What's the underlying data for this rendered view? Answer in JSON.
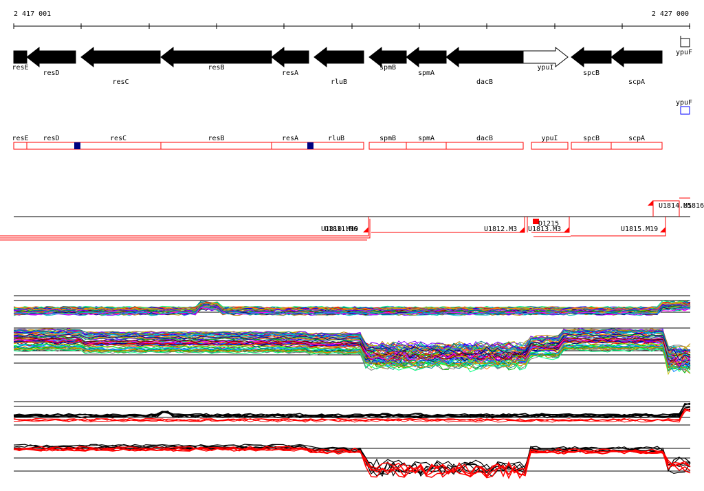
{
  "coordinates": {
    "start": "2 417 001",
    "end": "2 427 000"
  },
  "genes": [
    {
      "label": "resE",
      "strand": "minus",
      "label_row": 1
    },
    {
      "label": "resD",
      "strand": "minus",
      "label_row": 2
    },
    {
      "label": "resC",
      "strand": "minus",
      "label_row": 3
    },
    {
      "label": "resB",
      "strand": "minus",
      "label_row": 1
    },
    {
      "label": "resA",
      "strand": "minus",
      "label_row": 2
    },
    {
      "label": "rluB",
      "strand": "minus",
      "label_row": 3
    },
    {
      "label": "spmB",
      "strand": "minus",
      "label_row": 1
    },
    {
      "label": "spmA",
      "strand": "minus",
      "label_row": 2
    },
    {
      "label": "dacB",
      "strand": "minus",
      "label_row": 3
    },
    {
      "label": "ypuI",
      "strand": "plus",
      "label_row": 1
    },
    {
      "label": "spcB",
      "strand": "minus",
      "label_row": 2
    },
    {
      "label": "scpA",
      "strand": "minus",
      "label_row": 3
    },
    {
      "label": "ypuF",
      "strand": "plus",
      "label_row": 2
    }
  ],
  "orf_boxes": [
    {
      "label": "resE"
    },
    {
      "label": "resD"
    },
    {
      "label": "resC"
    },
    {
      "label": "resB"
    },
    {
      "label": "resA"
    },
    {
      "label": "rluB"
    },
    {
      "label": "spmB"
    },
    {
      "label": "spmA"
    },
    {
      "label": "dacB"
    },
    {
      "label": "ypuI"
    },
    {
      "label": "spcB"
    },
    {
      "label": "scpA"
    }
  ],
  "ypuF_box_label": "ypuF",
  "transcript_units": [
    {
      "label": "U1810.M19"
    },
    {
      "label": "U1811.M6"
    },
    {
      "label": "U1812.M3"
    },
    {
      "label": "U1813.M3"
    },
    {
      "label": "D1215"
    },
    {
      "label": "U1814.M5"
    },
    {
      "label": "U1815.M19"
    },
    {
      "label": "U1816"
    }
  ],
  "colors": {
    "gene_fill": "#000000",
    "gene_plus_fill": "#ffffff",
    "box_stroke": "#ff0000",
    "feature_fill": "#000080",
    "transcript_line": "#ff0000",
    "ypuF_box": "#0000ff"
  }
}
